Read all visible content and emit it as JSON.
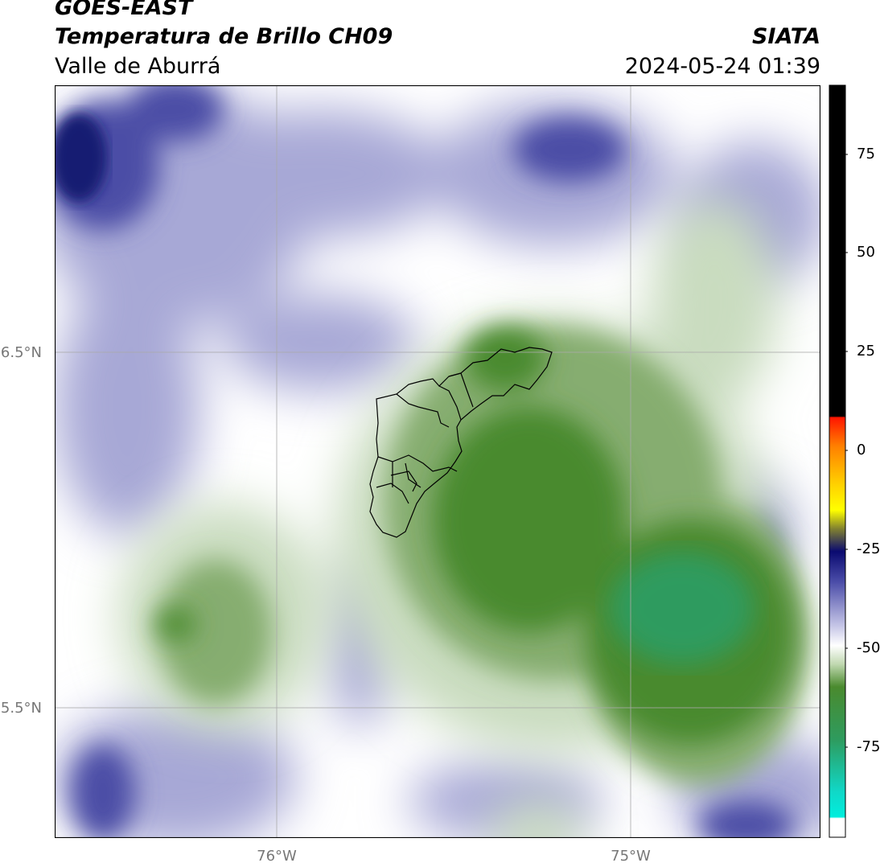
{
  "header": {
    "title_line1": "GOES-EAST",
    "title_line2": "Temperatura de Brillo CH09",
    "organization": "SIATA",
    "subtitle": "Valle de Aburrá",
    "datetime": "2024-05-24 01:39"
  },
  "map": {
    "lat_labels": [
      "6.5°N",
      "5.5°N"
    ],
    "lon_labels": [
      "76°W",
      "75°W"
    ],
    "overlay": "Valle de Aburrá municipal boundaries"
  },
  "colorbar": {
    "ticks": [
      "75",
      "50",
      "25",
      "0",
      "-25",
      "-50",
      "-75"
    ],
    "colors": {
      "hot": "#000000",
      "red": "#ff2000",
      "orange": "#ff9000",
      "yellow": "#ffff00",
      "dark_blue": "#14147a",
      "light_blue": "#b8b8e0",
      "white": "#ffffff",
      "green": "#4a8a2e",
      "teal_green": "#2e9b5e",
      "cyan": "#00eedd"
    }
  }
}
